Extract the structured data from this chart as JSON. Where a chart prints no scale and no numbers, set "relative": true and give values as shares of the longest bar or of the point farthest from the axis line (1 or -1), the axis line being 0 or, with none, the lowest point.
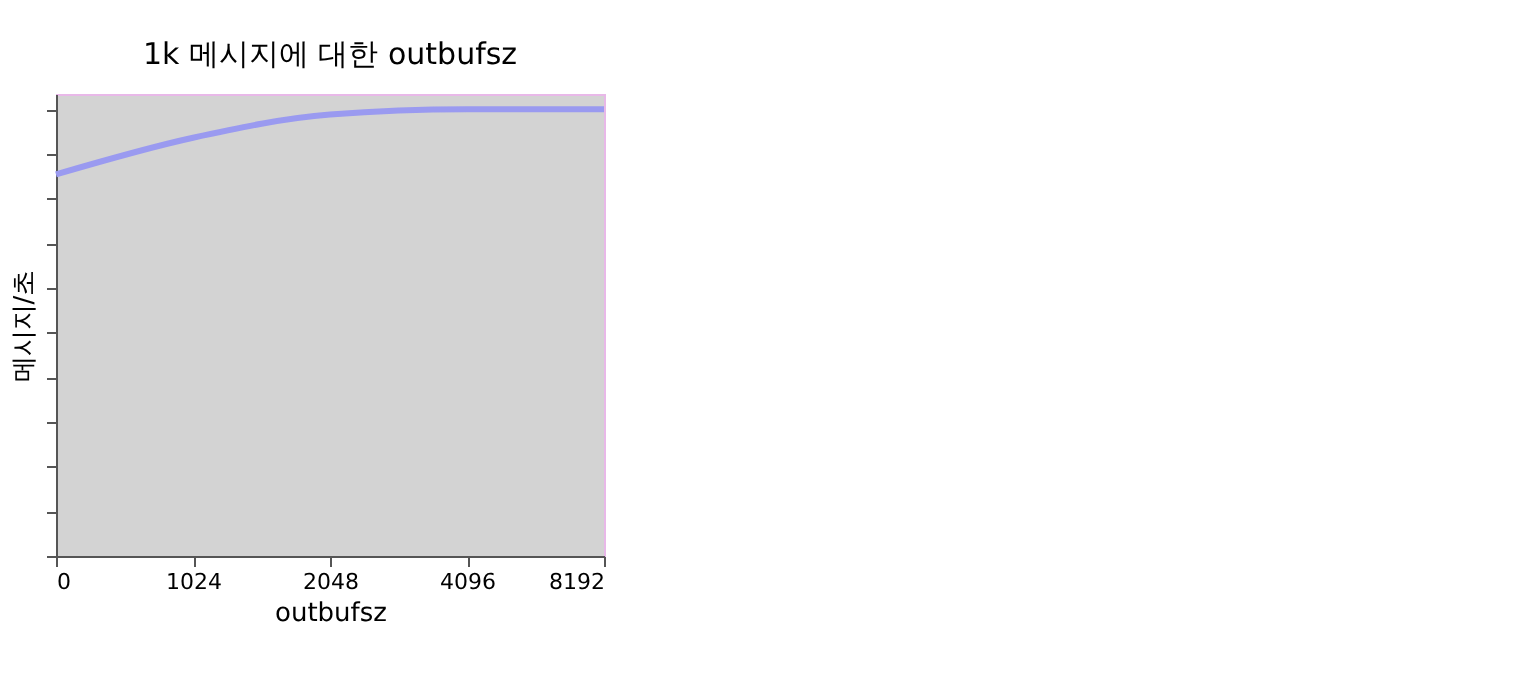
{
  "chart_data": {
    "type": "line",
    "title": "1k 메시지에 대한 outbufsz",
    "xlabel": "outbufsz",
    "ylabel": "메시지/초",
    "categories": [
      "0",
      "1024",
      "2048",
      "4096",
      "8192"
    ],
    "relative": true,
    "series": [
      {
        "color": "#9a9af0",
        "values": [
          0.854,
          0.936,
          0.988,
          1,
          1
        ]
      }
    ],
    "grid": false,
    "marker": "none",
    "line_style": "solid"
  }
}
